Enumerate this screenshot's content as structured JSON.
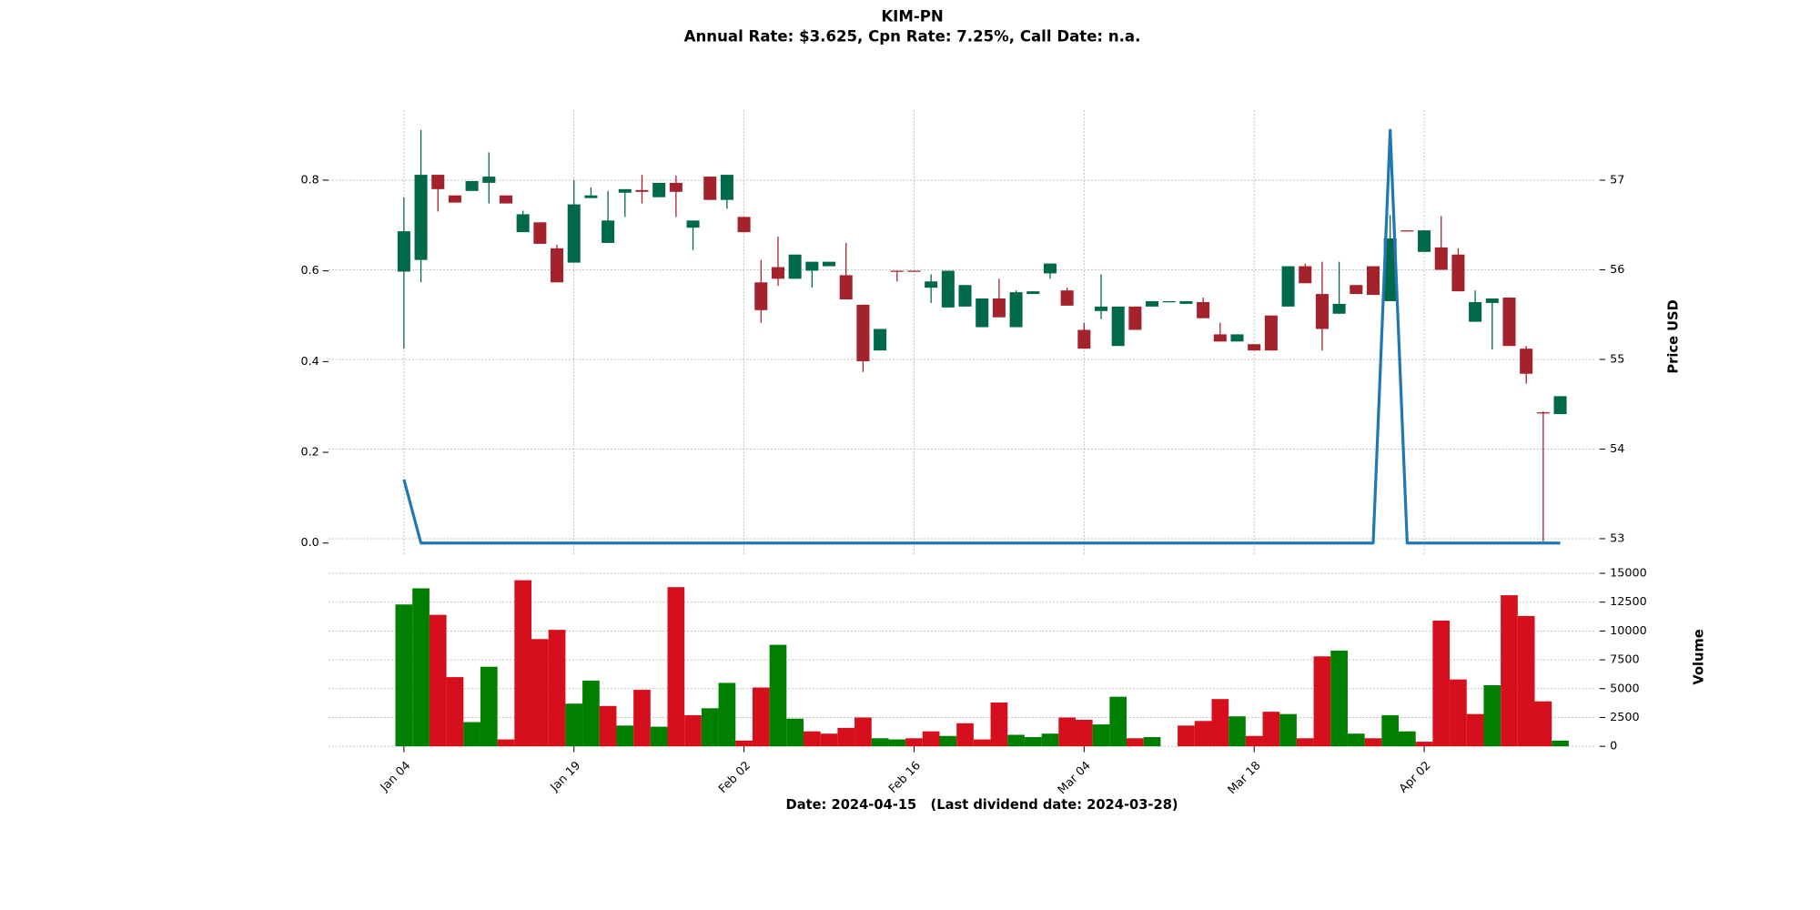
{
  "chart_data": [
    {
      "type": "candlestick",
      "title": "KIM-PN",
      "subtitle": "Annual Rate: $3.625, Cpn Rate: 7.25%, Call Date: n.a.",
      "xlabel": "Date: 2024-04-15   (Last dividend date: 2024-03-28)",
      "ylabel": "Price USD",
      "categories": [
        "Jan 04",
        null,
        null,
        null,
        null,
        null,
        null,
        null,
        null,
        null,
        "Jan 19",
        null,
        null,
        null,
        null,
        null,
        null,
        null,
        null,
        null,
        "Feb 02",
        null,
        null,
        null,
        null,
        null,
        null,
        null,
        null,
        null,
        "Feb 16",
        null,
        null,
        null,
        null,
        null,
        null,
        null,
        null,
        null,
        "Mar 04",
        null,
        null,
        null,
        null,
        null,
        null,
        null,
        null,
        null,
        "Mar 18",
        null,
        null,
        null,
        null,
        null,
        null,
        null,
        null,
        null,
        "Apr 02",
        null,
        null,
        null,
        null,
        null,
        null,
        null,
        null
      ],
      "open": [
        55.98,
        56.11,
        57.06,
        56.83,
        56.88,
        56.97,
        56.83,
        56.42,
        56.53,
        56.24,
        56.08,
        56.8,
        56.3,
        56.86,
        56.89,
        56.81,
        56.97,
        56.47,
        57.04,
        56.78,
        56.59,
        55.86,
        56.03,
        55.9,
        55.99,
        56.04,
        55.94,
        55.61,
        55.1,
        55.99,
        55.99,
        55.8,
        55.58,
        55.59,
        55.36,
        55.68,
        55.36,
        55.73,
        55.96,
        55.77,
        55.33,
        55.54,
        55.15,
        55.59,
        55.59,
        55.64,
        55.62,
        55.64,
        55.28,
        55.2,
        55.17,
        55.49,
        55.59,
        56.04,
        55.73,
        55.51,
        55.83,
        56.04,
        55.65,
        56.44,
        56.2,
        56.25,
        56.17,
        55.42,
        55.63,
        55.69,
        55.12,
        54.41,
        54.39
      ],
      "high": [
        56.81,
        57.56,
        57.06,
        56.83,
        56.99,
        57.31,
        56.83,
        56.66,
        56.53,
        56.28,
        57.0,
        56.92,
        56.88,
        56.9,
        57.06,
        56.97,
        57.05,
        56.55,
        57.04,
        57.06,
        56.59,
        56.11,
        56.37,
        56.17,
        56.09,
        56.09,
        56.3,
        55.61,
        55.34,
        55.99,
        55.99,
        55.95,
        55.99,
        55.83,
        55.68,
        55.9,
        55.77,
        55.76,
        56.07,
        55.8,
        55.41,
        55.95,
        55.59,
        55.59,
        55.65,
        55.65,
        55.65,
        55.69,
        55.41,
        55.28,
        55.17,
        55.49,
        56.04,
        56.07,
        56.09,
        56.09,
        55.83,
        56.04,
        56.61,
        56.44,
        56.44,
        56.6,
        56.24,
        55.77,
        55.68,
        55.69,
        55.15,
        54.42,
        54.59
      ],
      "low": [
        55.12,
        55.86,
        56.65,
        56.75,
        56.88,
        56.74,
        56.74,
        56.42,
        56.29,
        55.86,
        56.08,
        56.8,
        56.3,
        56.59,
        56.74,
        56.81,
        56.59,
        56.22,
        56.78,
        56.68,
        56.42,
        55.41,
        55.82,
        55.9,
        55.8,
        56.04,
        55.67,
        54.86,
        55.1,
        55.87,
        55.98,
        55.63,
        55.58,
        55.59,
        55.36,
        55.47,
        55.36,
        55.73,
        55.9,
        55.6,
        55.12,
        55.45,
        55.15,
        55.33,
        55.59,
        55.64,
        55.62,
        55.46,
        55.2,
        55.2,
        55.1,
        55.1,
        55.59,
        55.85,
        55.1,
        55.51,
        55.73,
        55.72,
        55.65,
        56.43,
        56.2,
        56.0,
        55.76,
        55.42,
        55.11,
        55.15,
        54.73,
        52.97,
        54.39
      ],
      "close": [
        56.43,
        57.06,
        56.9,
        56.75,
        56.99,
        57.04,
        56.74,
        56.62,
        56.29,
        55.86,
        56.73,
        56.83,
        56.55,
        56.9,
        56.87,
        56.97,
        56.87,
        56.55,
        56.78,
        57.06,
        56.42,
        55.55,
        55.9,
        56.17,
        56.09,
        56.09,
        55.67,
        54.98,
        55.34,
        55.98,
        55.98,
        55.87,
        55.99,
        55.83,
        55.68,
        55.47,
        55.75,
        55.76,
        56.07,
        55.6,
        55.12,
        55.59,
        55.59,
        55.33,
        55.65,
        55.65,
        55.65,
        55.46,
        55.2,
        55.28,
        55.1,
        55.1,
        56.04,
        55.85,
        55.34,
        55.62,
        55.73,
        55.72,
        56.35,
        56.43,
        56.44,
        56.0,
        55.76,
        55.64,
        55.68,
        55.15,
        54.84,
        54.4,
        54.59
      ],
      "up_color": "#00694a",
      "down_color": "#a3222c",
      "ylim": [
        52.82,
        57.78
      ],
      "yticks": [
        53,
        54,
        55,
        56,
        57
      ],
      "y2lim": [
        -0.026,
        0.954
      ],
      "y2ticks": [
        {
          "value": 0,
          "label": "0.0"
        },
        0.2,
        0.4,
        0.6,
        0.8
      ],
      "grid": true,
      "series": [
        {
          "color": "#1f77b4",
          "axis": "y2",
          "values": [
            0.14,
            0,
            0,
            0,
            0,
            0,
            0,
            0,
            0,
            0,
            0,
            0,
            0,
            0,
            0,
            0,
            0,
            0,
            0,
            0,
            0,
            0,
            0,
            0,
            0,
            0,
            0,
            0,
            0,
            0,
            0,
            0,
            0,
            0,
            0,
            0,
            0,
            0,
            0,
            0,
            0,
            0,
            0,
            0,
            0,
            0,
            0,
            0,
            0,
            0,
            0,
            0,
            0,
            0,
            0,
            0,
            0,
            0,
            0.91,
            0,
            0,
            0,
            0,
            0,
            0,
            0,
            0,
            0,
            0
          ]
        }
      ]
    },
    {
      "type": "bar",
      "ylabel": "Volume",
      "values": [
        12300,
        13700,
        11400,
        6000,
        2100,
        6900,
        600,
        14400,
        9300,
        10100,
        3700,
        5700,
        3500,
        1800,
        4900,
        1700,
        13800,
        2700,
        3300,
        5500,
        500,
        5100,
        8800,
        2400,
        1300,
        1100,
        1600,
        2500,
        700,
        600,
        700,
        1300,
        900,
        2000,
        600,
        3800,
        1000,
        800,
        1100,
        2500,
        2300,
        1900,
        4300,
        700,
        800,
        0,
        1800,
        2200,
        4100,
        2600,
        900,
        3000,
        2800,
        700,
        7800,
        8300,
        1100,
        700,
        2700,
        1300,
        400,
        10900,
        5800,
        2800,
        5300,
        13100,
        11300,
        3900,
        500
      ],
      "colors": [
        "#007f00",
        "#007f00",
        "#d5101c",
        "#d5101c",
        "#007f00",
        "#007f00",
        "#d5101c",
        "#d5101c",
        "#d5101c",
        "#d5101c",
        "#007f00",
        "#007f00",
        "#d5101c",
        "#007f00",
        "#d5101c",
        "#007f00",
        "#d5101c",
        "#d5101c",
        "#007f00",
        "#007f00",
        "#d5101c",
        "#d5101c",
        "#007f00",
        "#007f00",
        "#d5101c",
        "#d5101c",
        "#d5101c",
        "#d5101c",
        "#007f00",
        "#007f00",
        "#d5101c",
        "#d5101c",
        "#007f00",
        "#d5101c",
        "#d5101c",
        "#d5101c",
        "#007f00",
        "#007f00",
        "#007f00",
        "#d5101c",
        "#d5101c",
        "#007f00",
        "#007f00",
        "#d5101c",
        "#007f00",
        "#007f00",
        "#d5101c",
        "#d5101c",
        "#d5101c",
        "#007f00",
        "#d5101c",
        "#d5101c",
        "#007f00",
        "#d5101c",
        "#d5101c",
        "#007f00",
        "#007f00",
        "#d5101c",
        "#007f00",
        "#007f00",
        "#d5101c",
        "#d5101c",
        "#d5101c",
        "#d5101c",
        "#007f00",
        "#d5101c",
        "#d5101c",
        "#d5101c",
        "#007f00"
      ],
      "ylim": [
        0,
        16100
      ],
      "yticks": [
        0,
        2500,
        5000,
        7500,
        10000,
        12500,
        15000
      ],
      "grid": true
    }
  ]
}
